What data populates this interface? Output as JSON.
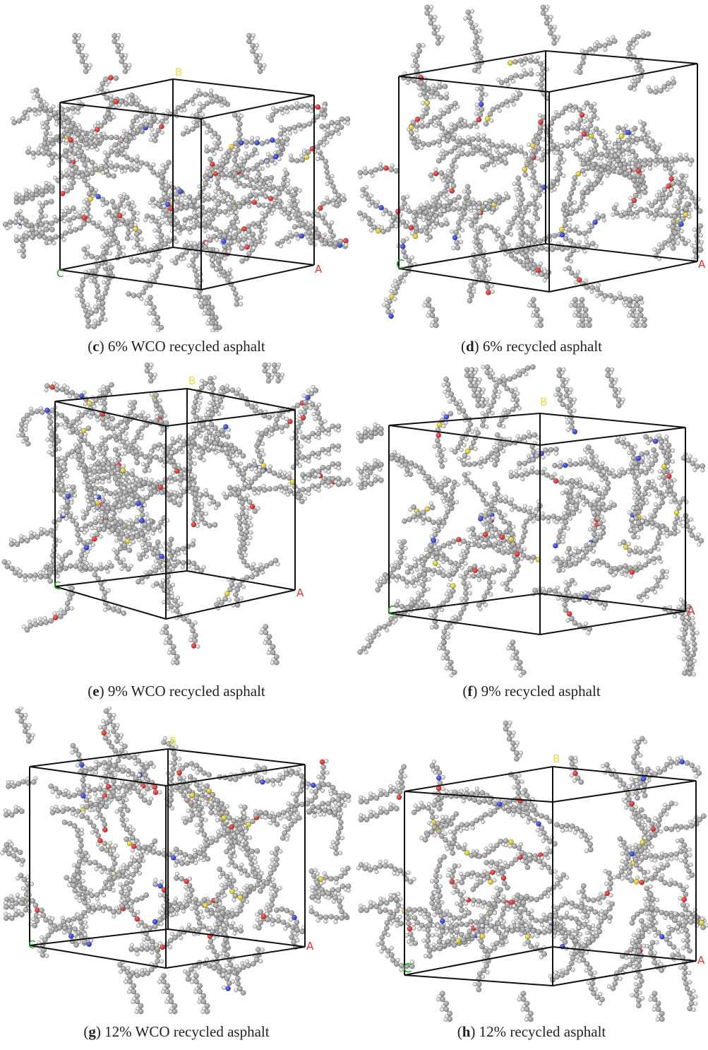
{
  "panels": [
    {
      "letter": "c",
      "text": "6% WCO recycled asphalt",
      "axes": {
        "a": "A",
        "b": "B",
        "c": "C"
      }
    },
    {
      "letter": "d",
      "text": "6% recycled asphalt",
      "axes": {
        "a": "A",
        "b": "",
        "c": "C"
      }
    },
    {
      "letter": "e",
      "text": "9% WCO recycled asphalt",
      "axes": {
        "a": "A",
        "b": "B",
        "c": "C"
      }
    },
    {
      "letter": "f",
      "text": "9% recycled asphalt",
      "axes": {
        "a": "A",
        "b": "B",
        "c": "C"
      }
    },
    {
      "letter": "g",
      "text": "12% WCO recycled asphalt",
      "axes": {
        "a": "A",
        "b": "B",
        "c": "C"
      }
    },
    {
      "letter": "h",
      "text": "12% recycled asphalt",
      "axes": {
        "a": "A",
        "b": "B",
        "c": "C"
      }
    }
  ],
  "colors": {
    "carbon": "#8a8a8a",
    "hydrogen": "#e8e8e8",
    "oxygen": "#d01818",
    "nitrogen": "#2030c8",
    "sulfur": "#e8d820",
    "box": "#111111",
    "axis_a": "#e03030",
    "axis_b": "#e8e040",
    "axis_c": "#20a020"
  }
}
